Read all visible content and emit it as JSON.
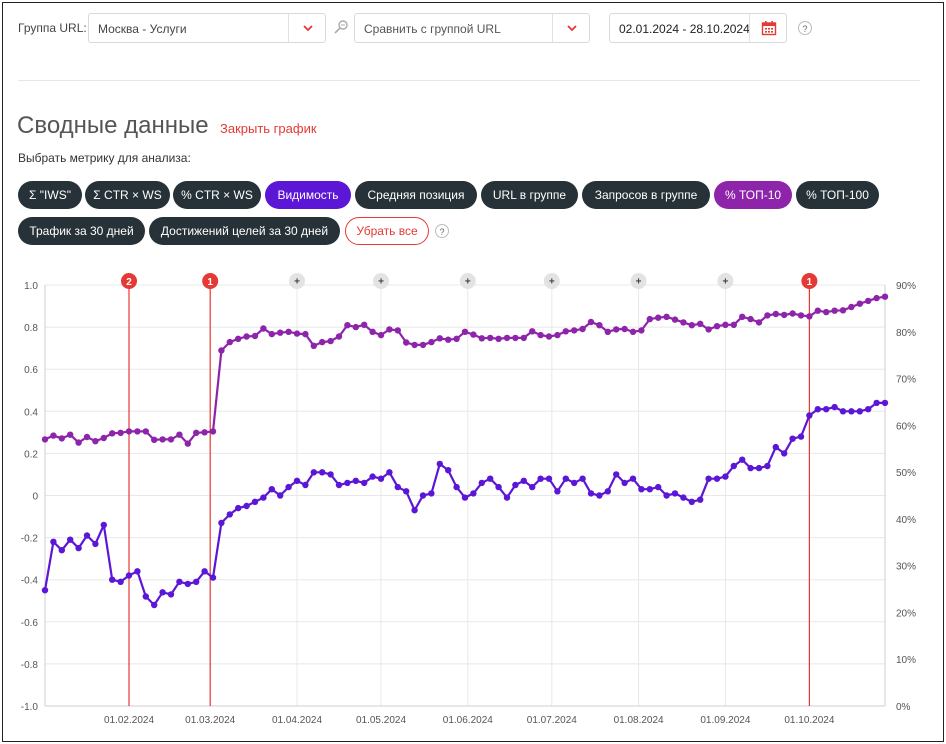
{
  "filters": {
    "group_label": "Группа URL:",
    "group_value": "Москва - Услуги",
    "compare_placeholder": "Сравнить с группой URL",
    "date_range": "02.01.2024 - 28.10.2024",
    "help": "?"
  },
  "section": {
    "title": "Сводные данные",
    "close_link": "Закрыть график",
    "hint": "Выбрать метрику для анализа:"
  },
  "metrics": [
    {
      "label": "Σ \"IWS\"",
      "state": "off"
    },
    {
      "label": "Σ CTR × WS",
      "state": "off"
    },
    {
      "label": "% CTR × WS",
      "state": "off"
    },
    {
      "label": "Видимость",
      "state": "active-blue"
    },
    {
      "label": "Средняя позиция",
      "state": "off"
    },
    {
      "label": "URL в группе",
      "state": "off"
    },
    {
      "label": "Запросов в группе",
      "state": "off"
    },
    {
      "label": "% ТОП-10",
      "state": "active-purple"
    },
    {
      "label": "% ТОП-100",
      "state": "off"
    },
    {
      "label": "Трафик за 30 дней",
      "state": "off"
    },
    {
      "label": "Достижений целей за 30 дней",
      "state": "off"
    }
  ],
  "reset_label": "Убрать все",
  "colors": {
    "visibility": "#5b16d6",
    "top10": "#8e24aa",
    "event_line": "#e53935",
    "dark_pill": "#263238"
  },
  "chart_data": {
    "type": "line",
    "x_start_date": "2024-01-02",
    "x_end_date": "2024-10-28",
    "x_tick_labels": [
      "01.02.2024",
      "01.03.2024",
      "01.04.2024",
      "01.05.2024",
      "01.06.2024",
      "01.07.2024",
      "01.08.2024",
      "01.09.2024",
      "01.10.2024"
    ],
    "y_left": {
      "min": -1.0,
      "max": 1.0,
      "ticks": [
        "-1.0",
        "-0.8",
        "-0.6",
        "-0.4",
        "-0.2",
        "0",
        "0.2",
        "0.4",
        "0.6",
        "0.8",
        "1.0"
      ]
    },
    "y_right": {
      "min": 0,
      "max": 90,
      "unit": "%",
      "ticks": [
        "0%",
        "10%",
        "20%",
        "30%",
        "40%",
        "50%",
        "60%",
        "70%",
        "80%",
        "90%"
      ]
    },
    "grid": true,
    "events": [
      {
        "date": "2024-02-01",
        "label": "2",
        "kind": "marker"
      },
      {
        "date": "2024-03-01",
        "label": "1",
        "kind": "marker"
      },
      {
        "date": "2024-10-01",
        "label": "1",
        "kind": "marker"
      }
    ],
    "add_markers": [
      {
        "date": "2024-04-01",
        "label": "+"
      },
      {
        "date": "2024-05-01",
        "label": "+"
      },
      {
        "date": "2024-06-01",
        "label": "+"
      },
      {
        "date": "2024-07-01",
        "label": "+"
      },
      {
        "date": "2024-08-01",
        "label": "+"
      },
      {
        "date": "2024-09-01",
        "label": "+"
      }
    ],
    "series": [
      {
        "key": "visibility",
        "axis": "left",
        "dates": [
          "2024-01-02",
          "2024-01-05",
          "2024-01-08",
          "2024-01-11",
          "2024-01-14",
          "2024-01-17",
          "2024-01-20",
          "2024-01-23",
          "2024-01-26",
          "2024-01-29",
          "2024-02-01",
          "2024-02-04",
          "2024-02-07",
          "2024-02-10",
          "2024-02-13",
          "2024-02-16",
          "2024-02-19",
          "2024-02-22",
          "2024-02-25",
          "2024-02-28",
          "2024-03-02",
          "2024-03-05",
          "2024-03-08",
          "2024-03-11",
          "2024-03-14",
          "2024-03-17",
          "2024-03-20",
          "2024-03-23",
          "2024-03-26",
          "2024-03-29",
          "2024-04-01",
          "2024-04-04",
          "2024-04-07",
          "2024-04-10",
          "2024-04-13",
          "2024-04-16",
          "2024-04-19",
          "2024-04-22",
          "2024-04-25",
          "2024-04-28",
          "2024-05-01",
          "2024-05-04",
          "2024-05-07",
          "2024-05-10",
          "2024-05-13",
          "2024-05-16",
          "2024-05-19",
          "2024-05-22",
          "2024-05-25",
          "2024-05-28",
          "2024-05-31",
          "2024-06-03",
          "2024-06-06",
          "2024-06-09",
          "2024-06-12",
          "2024-06-15",
          "2024-06-18",
          "2024-06-21",
          "2024-06-24",
          "2024-06-27",
          "2024-06-30",
          "2024-07-03",
          "2024-07-06",
          "2024-07-09",
          "2024-07-12",
          "2024-07-15",
          "2024-07-18",
          "2024-07-21",
          "2024-07-24",
          "2024-07-27",
          "2024-07-30",
          "2024-08-02",
          "2024-08-05",
          "2024-08-08",
          "2024-08-11",
          "2024-08-14",
          "2024-08-17",
          "2024-08-20",
          "2024-08-23",
          "2024-08-26",
          "2024-08-29",
          "2024-09-01",
          "2024-09-04",
          "2024-09-07",
          "2024-09-10",
          "2024-09-13",
          "2024-09-16",
          "2024-09-19",
          "2024-09-22",
          "2024-09-25",
          "2024-09-28",
          "2024-10-01",
          "2024-10-04",
          "2024-10-07",
          "2024-10-10",
          "2024-10-13",
          "2024-10-16",
          "2024-10-19",
          "2024-10-22",
          "2024-10-25",
          "2024-10-28"
        ],
        "values": [
          -0.45,
          -0.22,
          -0.26,
          -0.21,
          -0.25,
          -0.19,
          -0.23,
          -0.14,
          -0.4,
          -0.41,
          -0.38,
          -0.36,
          -0.48,
          -0.52,
          -0.46,
          -0.47,
          -0.41,
          -0.42,
          -0.41,
          -0.36,
          -0.39,
          -0.13,
          -0.09,
          -0.06,
          -0.05,
          -0.03,
          -0.01,
          0.03,
          0.0,
          0.04,
          0.07,
          0.05,
          0.11,
          0.11,
          0.1,
          0.05,
          0.06,
          0.07,
          0.06,
          0.09,
          0.08,
          0.11,
          0.04,
          0.02,
          -0.07,
          0.0,
          0.01,
          0.15,
          0.12,
          0.04,
          -0.01,
          0.01,
          0.06,
          0.08,
          0.04,
          -0.01,
          0.05,
          0.07,
          0.04,
          0.08,
          0.08,
          0.02,
          0.08,
          0.06,
          0.08,
          0.01,
          0.0,
          0.02,
          0.1,
          0.06,
          0.08,
          0.03,
          0.03,
          0.04,
          0.0,
          0.01,
          -0.01,
          -0.03,
          -0.02,
          0.08,
          0.08,
          0.09,
          0.14,
          0.17,
          0.13,
          0.13,
          0.14,
          0.23,
          0.2,
          0.27,
          0.28,
          0.38,
          0.41,
          0.41,
          0.42,
          0.4,
          0.4,
          0.4,
          0.41,
          0.44,
          0.44
        ]
      },
      {
        "key": "top10",
        "axis": "right",
        "dates": [
          "2024-01-02",
          "2024-01-05",
          "2024-01-08",
          "2024-01-11",
          "2024-01-14",
          "2024-01-17",
          "2024-01-20",
          "2024-01-23",
          "2024-01-26",
          "2024-01-29",
          "2024-02-01",
          "2024-02-04",
          "2024-02-07",
          "2024-02-10",
          "2024-02-13",
          "2024-02-16",
          "2024-02-19",
          "2024-02-22",
          "2024-02-25",
          "2024-02-28",
          "2024-03-02",
          "2024-03-05",
          "2024-03-08",
          "2024-03-11",
          "2024-03-14",
          "2024-03-17",
          "2024-03-20",
          "2024-03-23",
          "2024-03-26",
          "2024-03-29",
          "2024-04-01",
          "2024-04-04",
          "2024-04-07",
          "2024-04-10",
          "2024-04-13",
          "2024-04-16",
          "2024-04-19",
          "2024-04-22",
          "2024-04-25",
          "2024-04-28",
          "2024-05-01",
          "2024-05-04",
          "2024-05-07",
          "2024-05-10",
          "2024-05-13",
          "2024-05-16",
          "2024-05-19",
          "2024-05-22",
          "2024-05-25",
          "2024-05-28",
          "2024-05-31",
          "2024-06-03",
          "2024-06-06",
          "2024-06-09",
          "2024-06-12",
          "2024-06-15",
          "2024-06-18",
          "2024-06-21",
          "2024-06-24",
          "2024-06-27",
          "2024-06-30",
          "2024-07-03",
          "2024-07-06",
          "2024-07-09",
          "2024-07-12",
          "2024-07-15",
          "2024-07-18",
          "2024-07-21",
          "2024-07-24",
          "2024-07-27",
          "2024-07-30",
          "2024-08-02",
          "2024-08-05",
          "2024-08-08",
          "2024-08-11",
          "2024-08-14",
          "2024-08-17",
          "2024-08-20",
          "2024-08-23",
          "2024-08-26",
          "2024-08-29",
          "2024-09-01",
          "2024-09-04",
          "2024-09-07",
          "2024-09-10",
          "2024-09-13",
          "2024-09-16",
          "2024-09-19",
          "2024-09-22",
          "2024-09-25",
          "2024-09-28",
          "2024-10-01",
          "2024-10-04",
          "2024-10-07",
          "2024-10-10",
          "2024-10-13",
          "2024-10-16",
          "2024-10-19",
          "2024-10-22",
          "2024-10-25",
          "2024-10-28"
        ],
        "values": [
          57,
          57.8,
          57.2,
          58,
          56.3,
          57.5,
          56.6,
          57.3,
          58.3,
          58.4,
          58.7,
          58.7,
          58.7,
          56.9,
          57,
          57,
          58,
          56.1,
          58.4,
          58.5,
          58.7,
          76,
          77.8,
          78.5,
          79,
          79.1,
          80.7,
          79.5,
          79.8,
          80,
          79.6,
          79.5,
          77,
          77.8,
          78,
          79,
          81.4,
          81,
          81.5,
          80,
          79.3,
          80.5,
          80.3,
          77.7,
          77.2,
          77.2,
          77.8,
          78.6,
          78.3,
          78.5,
          80,
          79.4,
          78.6,
          78.7,
          78.5,
          78.7,
          78.7,
          78.7,
          80.1,
          79.3,
          79,
          79.3,
          80.1,
          80.3,
          80.6,
          82.1,
          81.4,
          80,
          80.5,
          80.6,
          80,
          80.3,
          82.7,
          83,
          83.2,
          82.6,
          82,
          81.4,
          81.7,
          80.5,
          81.2,
          81.5,
          81.5,
          83.2,
          82.7,
          82,
          83.5,
          83.8,
          83.6,
          83.9,
          83.5,
          83.3,
          84.5,
          84.2,
          84.5,
          84.6,
          85.3,
          86,
          86.6,
          87.2,
          87.5
        ]
      }
    ]
  }
}
